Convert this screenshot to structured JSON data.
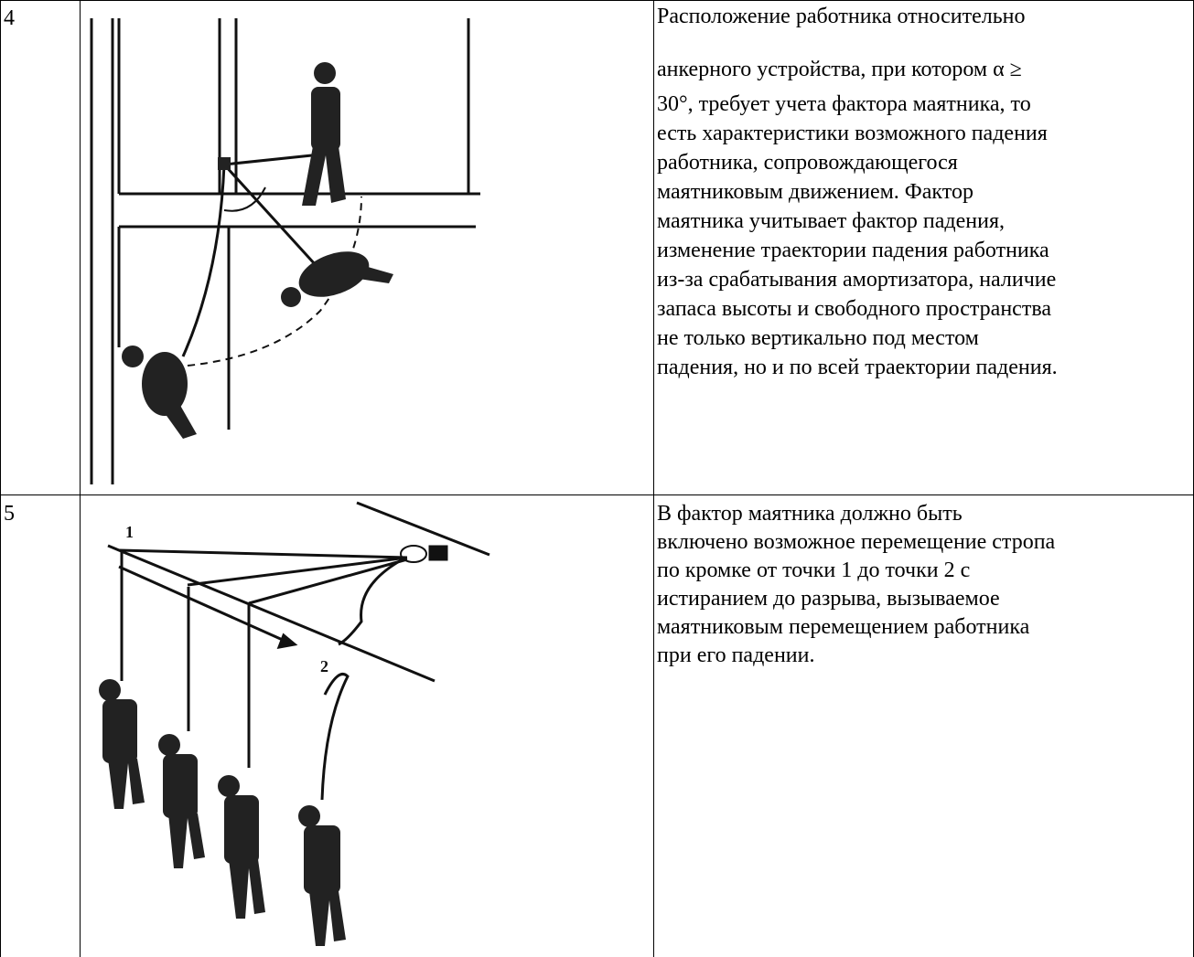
{
  "table": {
    "rows": [
      {
        "number": "4",
        "description": [
          "Расположение работника относительно",
          "анкерного устройства, при котором α ≥",
          "30°, требует учета фактора маятника, то",
          "есть характеристики возможного падения",
          "работника, сопровождающегося",
          "маятниковым движением. Фактор",
          "маятника учитывает фактор падения,",
          "изменение траектории падения работника",
          "из-за срабатывания амортизатора, наличие",
          "запаса высоты и свободного пространства",
          "не только вертикально под местом",
          "падения, но и по всей траектории падения."
        ]
      },
      {
        "number": "5",
        "illustration_labels": [
          "1",
          "2"
        ],
        "description": [
          "В фактор маятника должно быть",
          "включено возможное перемещение стропа",
          "по кромке от точки 1 до точки 2 с",
          "истиранием до разрыва, вызываемое",
          "маятниковым перемещением работника",
          "при его падении."
        ]
      }
    ]
  }
}
